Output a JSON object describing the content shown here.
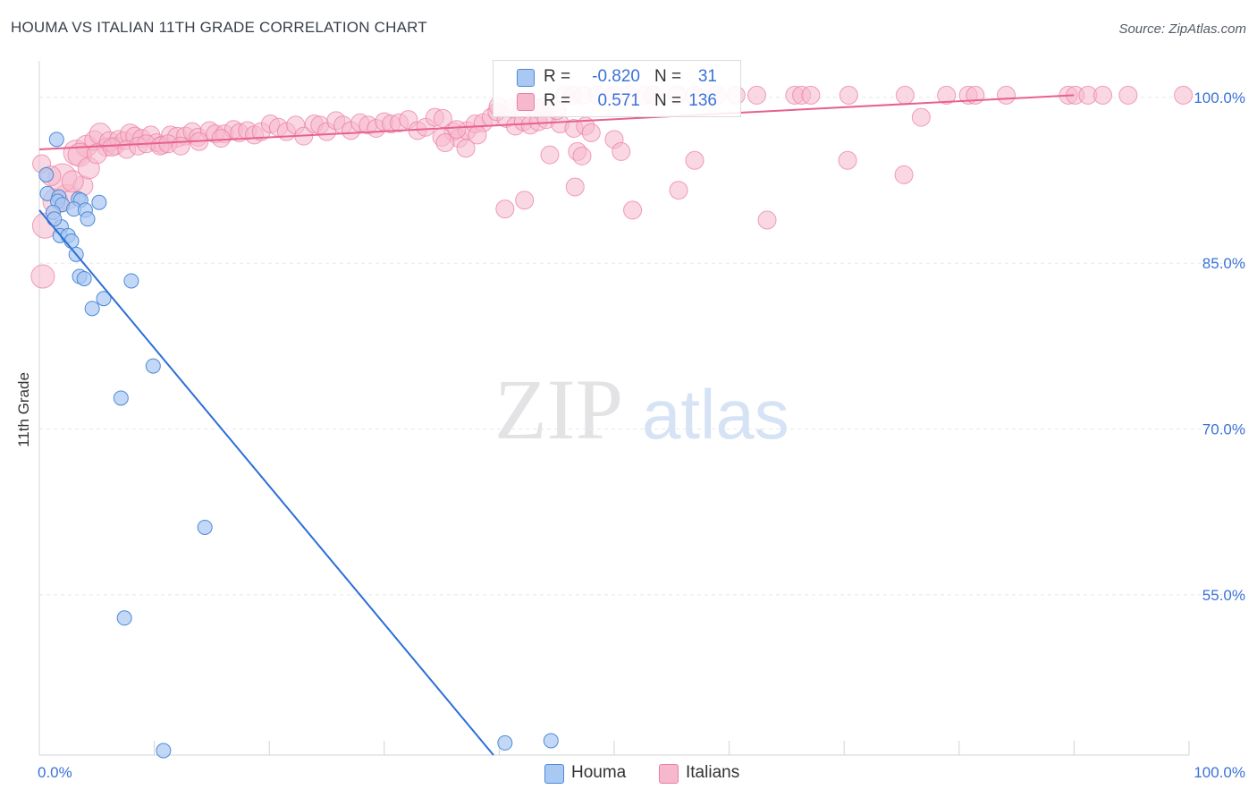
{
  "title": "HOUMA VS ITALIAN 11TH GRADE CORRELATION CHART",
  "source": "Source: ZipAtlas.com",
  "watermark": {
    "zip": "ZIP",
    "atlas": "atlas"
  },
  "colors": {
    "houma_fill": "#a9c8f2",
    "houma_stroke": "#4d8ad6",
    "houma_line": "#2a6fd6",
    "italians_fill": "#f6b8cc",
    "italians_stroke": "#eb7fa2",
    "italians_line": "#e8608e",
    "axis_text": "#3a72d8",
    "grid": "#e6e8ec"
  },
  "legend": {
    "houma": {
      "r_label": "R =",
      "r_value": "-0.820",
      "n_label": "N =",
      "n_value": "31"
    },
    "italians": {
      "r_label": "R =",
      "r_value": "0.571",
      "n_label": "N =",
      "n_value": "136"
    }
  },
  "chart_data": {
    "type": "scatter",
    "title": "HOUMA VS ITALIAN 11TH GRADE CORRELATION CHART",
    "xlabel": "",
    "ylabel": "11th Grade",
    "xlim": [
      0,
      100
    ],
    "ylim": [
      40.5,
      102.5
    ],
    "x_tick_labels": [
      "0.0%",
      "100.0%"
    ],
    "y_ticks": [
      100,
      85,
      70,
      55
    ],
    "y_tick_labels": [
      "100.0%",
      "85.0%",
      "70.0%",
      "55.0%"
    ],
    "legend_position": "bottom",
    "series": [
      {
        "name": "Houma",
        "trend": {
          "x": [
            0,
            39.5
          ],
          "y": [
            89.8,
            40.5
          ]
        },
        "points": [
          [
            1.5,
            96.2
          ],
          [
            0.6,
            93.0
          ],
          [
            0.7,
            91.3
          ],
          [
            1.7,
            91.0
          ],
          [
            1.6,
            90.6
          ],
          [
            2.0,
            90.3
          ],
          [
            1.2,
            89.6
          ],
          [
            3.4,
            90.8
          ],
          [
            3.6,
            90.7
          ],
          [
            5.2,
            90.5
          ],
          [
            3.0,
            89.9
          ],
          [
            4.0,
            89.8
          ],
          [
            4.2,
            89.0
          ],
          [
            1.9,
            88.3
          ],
          [
            1.8,
            87.5
          ],
          [
            2.5,
            87.5
          ],
          [
            2.8,
            87.0
          ],
          [
            3.2,
            85.8
          ],
          [
            3.5,
            83.8
          ],
          [
            3.9,
            83.6
          ],
          [
            8.0,
            83.4
          ],
          [
            5.6,
            81.8
          ],
          [
            4.6,
            80.9
          ],
          [
            9.9,
            75.7
          ],
          [
            7.1,
            72.8
          ],
          [
            14.4,
            61.1
          ],
          [
            7.4,
            52.9
          ],
          [
            10.8,
            40.9
          ],
          [
            40.5,
            41.6
          ],
          [
            44.5,
            41.8
          ],
          [
            1.3,
            89.0
          ]
        ]
      },
      {
        "name": "Italians",
        "trend": {
          "x": [
            0,
            90
          ],
          "y": [
            95.3,
            100.2
          ]
        },
        "points": [
          [
            0.5,
            88.4,
            14
          ],
          [
            0.3,
            83.8,
            13
          ],
          [
            1.4,
            90.6,
            14
          ],
          [
            2.4,
            91.0,
            14
          ],
          [
            2.0,
            92.7,
            16
          ],
          [
            3.2,
            95.0,
            14
          ],
          [
            3.8,
            92.0,
            11
          ],
          [
            4.1,
            95.6,
            12
          ],
          [
            4.8,
            96.1,
            11
          ],
          [
            5.3,
            96.7,
            12
          ],
          [
            5.8,
            95.5,
            10
          ],
          [
            6.1,
            96.0,
            11
          ],
          [
            6.6,
            95.6,
            10
          ],
          [
            6.9,
            96.2,
            10
          ],
          [
            7.4,
            96.1,
            10
          ],
          [
            7.9,
            96.7,
            11
          ],
          [
            8.3,
            96.5,
            10
          ],
          [
            8.9,
            96.3,
            10
          ],
          [
            9.7,
            96.6,
            10
          ],
          [
            10.2,
            95.9,
            10
          ],
          [
            10.7,
            95.7,
            10
          ],
          [
            11.4,
            96.6,
            10
          ],
          [
            12.0,
            96.4,
            11
          ],
          [
            12.7,
            96.5,
            10
          ],
          [
            13.3,
            96.9,
            10
          ],
          [
            13.8,
            96.4,
            10
          ],
          [
            14.8,
            97.0,
            10
          ],
          [
            15.3,
            96.7,
            10
          ],
          [
            16.1,
            96.7,
            10
          ],
          [
            16.9,
            97.1,
            10
          ],
          [
            17.4,
            96.8,
            10
          ],
          [
            18.1,
            97.0,
            10
          ],
          [
            18.7,
            96.6,
            10
          ],
          [
            19.3,
            96.9,
            10
          ],
          [
            20.1,
            97.6,
            10
          ],
          [
            20.8,
            97.3,
            10
          ],
          [
            21.5,
            96.9,
            10
          ],
          [
            22.3,
            97.5,
            10
          ],
          [
            23.0,
            96.5,
            10
          ],
          [
            23.9,
            97.6,
            10
          ],
          [
            24.4,
            97.5,
            10
          ],
          [
            25.0,
            96.9,
            10
          ],
          [
            25.8,
            97.9,
            10
          ],
          [
            26.4,
            97.5,
            10
          ],
          [
            27.1,
            97.0,
            10
          ],
          [
            27.9,
            97.7,
            10
          ],
          [
            28.6,
            97.5,
            10
          ],
          [
            29.3,
            97.2,
            10
          ],
          [
            30.0,
            97.8,
            10
          ],
          [
            30.6,
            97.6,
            10
          ],
          [
            31.3,
            97.7,
            10
          ],
          [
            32.1,
            98.0,
            10
          ],
          [
            32.9,
            97.0,
            10
          ],
          [
            33.6,
            97.3,
            10
          ],
          [
            34.4,
            98.2,
            10
          ],
          [
            35.1,
            98.1,
            10
          ],
          [
            36.0,
            96.9,
            10
          ],
          [
            36.5,
            96.3,
            10
          ],
          [
            37.2,
            97.0,
            10
          ],
          [
            37.9,
            97.6,
            10
          ],
          [
            38.6,
            97.7,
            10
          ],
          [
            39.3,
            98.2,
            10
          ],
          [
            39.8,
            98.7,
            10
          ],
          [
            40.6,
            98.1,
            10
          ],
          [
            41.4,
            97.4,
            10
          ],
          [
            42.1,
            97.8,
            10
          ],
          [
            42.7,
            97.5,
            10
          ],
          [
            43.4,
            97.8,
            10
          ],
          [
            44.1,
            98.0,
            10
          ],
          [
            45.3,
            97.6,
            10
          ],
          [
            46.5,
            97.2,
            10
          ],
          [
            47.5,
            97.4,
            10
          ],
          [
            48.0,
            96.8,
            10
          ],
          [
            36.3,
            97.1,
            10
          ],
          [
            35.0,
            96.4,
            10
          ],
          [
            38.1,
            96.6,
            10
          ],
          [
            39.9,
            99.2,
            10
          ],
          [
            41.0,
            99.0,
            10
          ],
          [
            42.0,
            99.0,
            10
          ],
          [
            43.2,
            99.0,
            10
          ],
          [
            44.0,
            99.2,
            10
          ],
          [
            45.0,
            98.8,
            10
          ],
          [
            45.7,
            100.2,
            10
          ],
          [
            46.4,
            100.2,
            10
          ],
          [
            47.3,
            100.2,
            10
          ],
          [
            48.5,
            100.2,
            10
          ],
          [
            49.9,
            100.2,
            10
          ],
          [
            51.3,
            100.2,
            10
          ],
          [
            52.7,
            100.2,
            10
          ],
          [
            53.4,
            100.2,
            10
          ],
          [
            55.5,
            100.2,
            10
          ],
          [
            57.0,
            100.2,
            10
          ],
          [
            58.9,
            100.2,
            10
          ],
          [
            60.6,
            100.2,
            10
          ],
          [
            62.4,
            100.2,
            10
          ],
          [
            65.7,
            100.2,
            10
          ],
          [
            66.3,
            100.2,
            10
          ],
          [
            67.1,
            100.2,
            10
          ],
          [
            70.4,
            100.2,
            10
          ],
          [
            75.3,
            100.2,
            10
          ],
          [
            78.9,
            100.2,
            10
          ],
          [
            80.8,
            100.2,
            10
          ],
          [
            81.4,
            100.2,
            10
          ],
          [
            84.1,
            100.2,
            10
          ],
          [
            89.5,
            100.2,
            10
          ],
          [
            90.1,
            100.2,
            10
          ],
          [
            91.2,
            100.2,
            10
          ],
          [
            92.5,
            100.2,
            10
          ],
          [
            94.7,
            100.2,
            10
          ],
          [
            99.5,
            100.2,
            10
          ],
          [
            76.7,
            98.2,
            10
          ],
          [
            50.0,
            96.2,
            10
          ],
          [
            50.6,
            95.1,
            10
          ],
          [
            46.8,
            95.1,
            10
          ],
          [
            35.3,
            95.9,
            10
          ],
          [
            37.1,
            95.4,
            10
          ],
          [
            44.4,
            94.8,
            10
          ],
          [
            47.2,
            94.7,
            10
          ],
          [
            57.0,
            94.3,
            10
          ],
          [
            70.3,
            94.3,
            10
          ],
          [
            75.2,
            93.0,
            10
          ],
          [
            46.6,
            91.9,
            10
          ],
          [
            55.6,
            91.6,
            10
          ],
          [
            42.2,
            90.7,
            10
          ],
          [
            40.5,
            89.9,
            10
          ],
          [
            51.6,
            89.8,
            10
          ],
          [
            63.3,
            88.9,
            10
          ],
          [
            0.2,
            94.0,
            10
          ],
          [
            1.0,
            92.9,
            11
          ],
          [
            2.9,
            92.4,
            12
          ],
          [
            3.5,
            94.8,
            13
          ],
          [
            4.3,
            93.6,
            12
          ],
          [
            5.0,
            94.9,
            11
          ],
          [
            6.3,
            95.5,
            10
          ],
          [
            7.6,
            95.3,
            10
          ],
          [
            8.6,
            95.6,
            10
          ],
          [
            9.3,
            95.8,
            10
          ],
          [
            10.5,
            95.6,
            10
          ],
          [
            11.2,
            95.8,
            10
          ],
          [
            12.3,
            95.6,
            10
          ],
          [
            13.9,
            96.0,
            10
          ],
          [
            15.8,
            96.3,
            10
          ]
        ]
      }
    ]
  },
  "bottom_legend": {
    "houma": "Houma",
    "italians": "Italians"
  }
}
